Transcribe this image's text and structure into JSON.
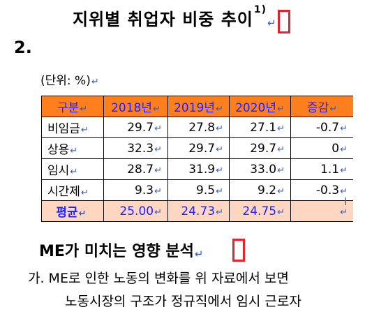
{
  "document": {
    "title": "지위별 취업자 비중 추이",
    "title_note": "1)",
    "paragraph_mark": "↵",
    "section_number": "2.",
    "unit": "(단위: %)"
  },
  "table": {
    "headers": [
      "구분",
      "2018년",
      "2019년",
      "2020년",
      "증감"
    ],
    "rows": [
      {
        "label": "비임금",
        "values": [
          "29.7",
          "27.8",
          "27.1",
          "-0.7"
        ]
      },
      {
        "label": "상용",
        "values": [
          "32.3",
          "29.7",
          "29.7",
          "0"
        ]
      },
      {
        "label": "임시",
        "values": [
          "28.7",
          "31.9",
          "33.0",
          "1.1"
        ]
      },
      {
        "label": "시간제",
        "values": [
          "9.3",
          "9.5",
          "9.2",
          "-0.3"
        ]
      }
    ],
    "average": {
      "label": "평균",
      "values": [
        "25.00",
        "24.73",
        "24.75",
        ""
      ]
    }
  },
  "section": {
    "heading": "ME가 미치는 영향 분석"
  },
  "paragraph": {
    "line1": "가. ME로 인한 노동의 변화를 위 자료에서 보면",
    "line2": "노동시장의 구조가 정규직에서 임시 근로자"
  },
  "colors": {
    "table_header_bg": "#ff7f1f",
    "table_header_text": "#1e22ff",
    "average_row_bg": "#ffd6c0",
    "highlight_box": "#e4242d",
    "paragraph_mark": "#2d5ec8"
  }
}
